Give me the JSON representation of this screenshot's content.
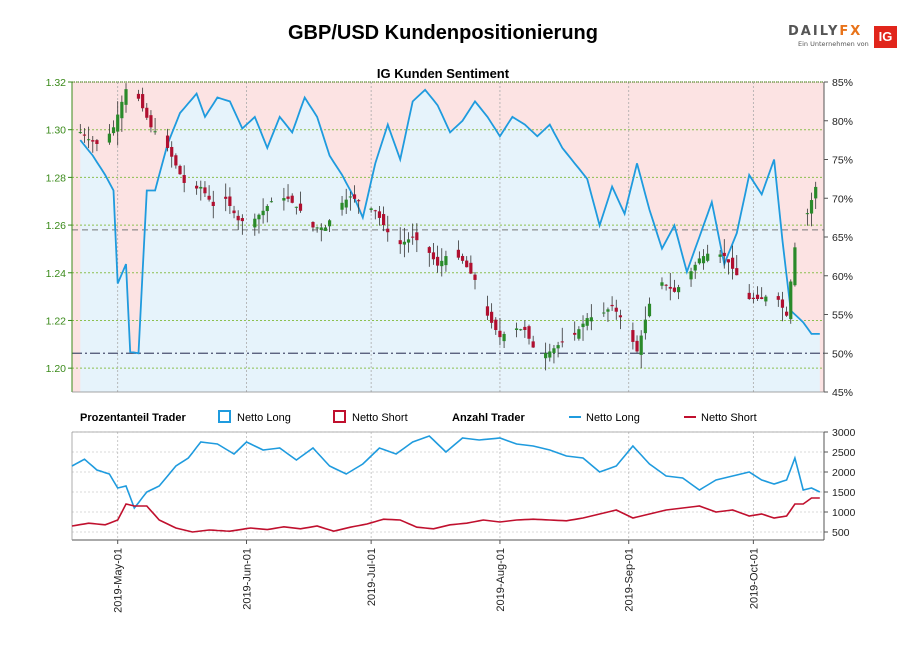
{
  "title": "GBP/USD Kundenpositionierung",
  "logo": {
    "brand_a": "DAILY",
    "brand_b": "FX",
    "tagline": "Ein Unternehmen von",
    "mark": "IG"
  },
  "colors": {
    "long": "#1f9bde",
    "short": "#c0102e",
    "up_candle": "#2a8a2a",
    "down_candle": "#b01030",
    "long_fill": "#e6f3fb",
    "short_fill": "#fce3e3",
    "left_axis": "#3a8a1a"
  },
  "legend": {
    "pct_header": "Prozentanteil Trader",
    "pct_long": "Netto Long",
    "pct_short": "Netto Short",
    "count_header": "Anzahl Trader",
    "count_long": "Netto Long",
    "count_short": "Netto Short"
  },
  "chart_data": [
    {
      "type": "candlestick",
      "title": "IG Kunden Sentiment",
      "ylim_price": [
        1.19,
        1.32
      ],
      "price_ticks": [
        "1.20",
        "1.22",
        "1.24",
        "1.26",
        "1.28",
        "1.30",
        "1.32"
      ],
      "ylim_pct": [
        45,
        85
      ],
      "pct_ticks": [
        "45%",
        "50%",
        "55%",
        "60%",
        "65%",
        "70%",
        "75%",
        "80%",
        "85%"
      ],
      "reference_lines": {
        "price": 1.258,
        "pct": 50
      },
      "close_anchors": [
        [
          "2019-04-22",
          1.299
        ],
        [
          "2019-04-24",
          1.296
        ],
        [
          "2019-04-27",
          1.293
        ],
        [
          "2019-04-30",
          1.301
        ],
        [
          "2019-05-03",
          1.317
        ],
        [
          "2019-05-06",
          1.313
        ],
        [
          "2019-05-09",
          1.301
        ],
        [
          "2019-05-12",
          1.296
        ],
        [
          "2019-05-15",
          1.285
        ],
        [
          "2019-05-18",
          1.274
        ],
        [
          "2019-05-21",
          1.276
        ],
        [
          "2019-05-24",
          1.268
        ],
        [
          "2019-05-27",
          1.271
        ],
        [
          "2019-05-30",
          1.262
        ],
        [
          "2019-06-02",
          1.261
        ],
        [
          "2019-06-05",
          1.266
        ],
        [
          "2019-06-08",
          1.272
        ],
        [
          "2019-06-11",
          1.271
        ],
        [
          "2019-06-14",
          1.266
        ],
        [
          "2019-06-17",
          1.259
        ],
        [
          "2019-06-20",
          1.259
        ],
        [
          "2019-06-23",
          1.268
        ],
        [
          "2019-06-26",
          1.272
        ],
        [
          "2019-06-29",
          1.269
        ],
        [
          "2019-07-02",
          1.266
        ],
        [
          "2019-07-05",
          1.257
        ],
        [
          "2019-07-08",
          1.252
        ],
        [
          "2019-07-11",
          1.255
        ],
        [
          "2019-07-14",
          1.251
        ],
        [
          "2019-07-17",
          1.243
        ],
        [
          "2019-07-20",
          1.249
        ],
        [
          "2019-07-23",
          1.245
        ],
        [
          "2019-07-26",
          1.237
        ],
        [
          "2019-07-29",
          1.222
        ],
        [
          "2019-08-01",
          1.213
        ],
        [
          "2019-08-04",
          1.217
        ],
        [
          "2019-08-07",
          1.216
        ],
        [
          "2019-08-10",
          1.205
        ],
        [
          "2019-08-13",
          1.207
        ],
        [
          "2019-08-16",
          1.211
        ],
        [
          "2019-08-19",
          1.214
        ],
        [
          "2019-08-22",
          1.221
        ],
        [
          "2019-08-25",
          1.222
        ],
        [
          "2019-08-28",
          1.226
        ],
        [
          "2019-08-31",
          1.219
        ],
        [
          "2019-09-03",
          1.207
        ],
        [
          "2019-09-06",
          1.227
        ],
        [
          "2019-09-09",
          1.236
        ],
        [
          "2019-09-12",
          1.232
        ],
        [
          "2019-09-15",
          1.238
        ],
        [
          "2019-09-18",
          1.246
        ],
        [
          "2019-09-21",
          1.249
        ],
        [
          "2019-09-24",
          1.247
        ],
        [
          "2019-09-27",
          1.239
        ],
        [
          "2019-09-30",
          1.229
        ],
        [
          "2019-10-03",
          1.229
        ],
        [
          "2019-10-06",
          1.232
        ],
        [
          "2019-10-09",
          1.222
        ],
        [
          "2019-10-12",
          1.265
        ],
        [
          "2019-10-14",
          1.265
        ],
        [
          "2019-10-16",
          1.276
        ]
      ],
      "net_long_pct_anchors": [
        [
          "2019-04-22",
          77.5
        ],
        [
          "2019-04-25",
          75.5
        ],
        [
          "2019-04-28",
          73.0
        ],
        [
          "2019-04-30",
          71.0
        ],
        [
          "2019-05-01",
          59.0
        ],
        [
          "2019-05-03",
          61.5
        ],
        [
          "2019-05-04",
          50.2
        ],
        [
          "2019-05-06",
          50.0
        ],
        [
          "2019-05-08",
          71.0
        ],
        [
          "2019-05-10",
          71.0
        ],
        [
          "2019-05-13",
          77.0
        ],
        [
          "2019-05-16",
          81.0
        ],
        [
          "2019-05-20",
          83.5
        ],
        [
          "2019-05-22",
          80.5
        ],
        [
          "2019-05-25",
          83.0
        ],
        [
          "2019-05-28",
          82.5
        ],
        [
          "2019-05-31",
          79.0
        ],
        [
          "2019-06-03",
          80.5
        ],
        [
          "2019-06-06",
          76.5
        ],
        [
          "2019-06-09",
          80.5
        ],
        [
          "2019-06-12",
          78.5
        ],
        [
          "2019-06-15",
          83.0
        ],
        [
          "2019-06-18",
          80.5
        ],
        [
          "2019-06-21",
          75.5
        ],
        [
          "2019-06-24",
          73.0
        ],
        [
          "2019-06-27",
          70.0
        ],
        [
          "2019-06-29",
          67.5
        ],
        [
          "2019-07-02",
          74.5
        ],
        [
          "2019-07-05",
          79.5
        ],
        [
          "2019-07-08",
          75.0
        ],
        [
          "2019-07-11",
          82.5
        ],
        [
          "2019-07-14",
          84.0
        ],
        [
          "2019-07-17",
          82.0
        ],
        [
          "2019-07-20",
          78.5
        ],
        [
          "2019-07-23",
          80.0
        ],
        [
          "2019-07-26",
          82.5
        ],
        [
          "2019-07-29",
          80.5
        ],
        [
          "2019-08-01",
          78.0
        ],
        [
          "2019-08-04",
          80.5
        ],
        [
          "2019-08-07",
          79.5
        ],
        [
          "2019-08-10",
          78.0
        ],
        [
          "2019-08-13",
          79.5
        ],
        [
          "2019-08-16",
          76.5
        ],
        [
          "2019-08-19",
          74.5
        ],
        [
          "2019-08-22",
          72.5
        ],
        [
          "2019-08-25",
          66.5
        ],
        [
          "2019-08-28",
          71.5
        ],
        [
          "2019-08-31",
          68.0
        ],
        [
          "2019-09-03",
          74.5
        ],
        [
          "2019-09-06",
          68.5
        ],
        [
          "2019-09-09",
          63.5
        ],
        [
          "2019-09-12",
          66.5
        ],
        [
          "2019-09-15",
          60.5
        ],
        [
          "2019-09-18",
          65.0
        ],
        [
          "2019-09-21",
          69.5
        ],
        [
          "2019-09-24",
          61.5
        ],
        [
          "2019-09-27",
          65.5
        ],
        [
          "2019-09-30",
          73.0
        ],
        [
          "2019-10-03",
          70.5
        ],
        [
          "2019-10-06",
          75.0
        ],
        [
          "2019-10-08",
          64.5
        ],
        [
          "2019-10-10",
          55.5
        ],
        [
          "2019-10-13",
          54.0
        ],
        [
          "2019-10-15",
          52.5
        ],
        [
          "2019-10-17",
          52.5
        ]
      ],
      "intraday_range": 0.012
    },
    {
      "type": "line",
      "ylim": [
        300,
        3000
      ],
      "yticks": [
        "500",
        "1000",
        "1500",
        "2000",
        "2500",
        "3000"
      ],
      "xlim": [
        "2019-04-20",
        "2019-10-18"
      ],
      "x_tick_labels": [
        "2019-May-01",
        "2019-Jun-01",
        "2019-Jul-01",
        "2019-Aug-01",
        "2019-Sep-01",
        "2019-Oct-01"
      ],
      "x_tick_dates": [
        "2019-05-01",
        "2019-06-01",
        "2019-07-01",
        "2019-08-01",
        "2019-09-01",
        "2019-10-01"
      ],
      "series": [
        {
          "name": "Netto Long",
          "values_anchors": [
            [
              "2019-04-20",
              2150
            ],
            [
              "2019-04-23",
              2320
            ],
            [
              "2019-04-26",
              2050
            ],
            [
              "2019-04-29",
              1950
            ],
            [
              "2019-05-01",
              1600
            ],
            [
              "2019-05-03",
              1650
            ],
            [
              "2019-05-05",
              1100
            ],
            [
              "2019-05-08",
              1500
            ],
            [
              "2019-05-11",
              1650
            ],
            [
              "2019-05-15",
              2150
            ],
            [
              "2019-05-18",
              2350
            ],
            [
              "2019-05-21",
              2750
            ],
            [
              "2019-05-25",
              2700
            ],
            [
              "2019-05-29",
              2450
            ],
            [
              "2019-06-01",
              2750
            ],
            [
              "2019-06-05",
              2550
            ],
            [
              "2019-06-09",
              2600
            ],
            [
              "2019-06-13",
              2300
            ],
            [
              "2019-06-17",
              2600
            ],
            [
              "2019-06-21",
              2150
            ],
            [
              "2019-06-25",
              1950
            ],
            [
              "2019-06-29",
              2200
            ],
            [
              "2019-07-03",
              2600
            ],
            [
              "2019-07-07",
              2450
            ],
            [
              "2019-07-11",
              2750
            ],
            [
              "2019-07-15",
              2900
            ],
            [
              "2019-07-19",
              2500
            ],
            [
              "2019-07-23",
              2850
            ],
            [
              "2019-07-27",
              2800
            ],
            [
              "2019-08-01",
              2850
            ],
            [
              "2019-08-05",
              2700
            ],
            [
              "2019-08-09",
              2650
            ],
            [
              "2019-08-13",
              2550
            ],
            [
              "2019-08-17",
              2400
            ],
            [
              "2019-08-21",
              2350
            ],
            [
              "2019-08-25",
              2000
            ],
            [
              "2019-08-29",
              2150
            ],
            [
              "2019-09-02",
              2650
            ],
            [
              "2019-09-06",
              2200
            ],
            [
              "2019-09-10",
              1900
            ],
            [
              "2019-09-14",
              1850
            ],
            [
              "2019-09-18",
              1550
            ],
            [
              "2019-09-22",
              1800
            ],
            [
              "2019-09-26",
              1900
            ],
            [
              "2019-09-30",
              2000
            ],
            [
              "2019-10-03",
              1800
            ],
            [
              "2019-10-06",
              1700
            ],
            [
              "2019-10-09",
              1800
            ],
            [
              "2019-10-11",
              2350
            ],
            [
              "2019-10-13",
              1550
            ],
            [
              "2019-10-15",
              1600
            ],
            [
              "2019-10-17",
              1500
            ]
          ]
        },
        {
          "name": "Netto Short",
          "values_anchors": [
            [
              "2019-04-20",
              650
            ],
            [
              "2019-04-24",
              720
            ],
            [
              "2019-04-28",
              680
            ],
            [
              "2019-05-01",
              800
            ],
            [
              "2019-05-03",
              1200
            ],
            [
              "2019-05-05",
              1150
            ],
            [
              "2019-05-08",
              1150
            ],
            [
              "2019-05-11",
              800
            ],
            [
              "2019-05-15",
              600
            ],
            [
              "2019-05-19",
              500
            ],
            [
              "2019-05-23",
              550
            ],
            [
              "2019-05-28",
              520
            ],
            [
              "2019-06-02",
              600
            ],
            [
              "2019-06-06",
              560
            ],
            [
              "2019-06-10",
              630
            ],
            [
              "2019-06-14",
              580
            ],
            [
              "2019-06-18",
              650
            ],
            [
              "2019-06-22",
              520
            ],
            [
              "2019-06-26",
              620
            ],
            [
              "2019-06-30",
              700
            ],
            [
              "2019-07-04",
              820
            ],
            [
              "2019-07-08",
              800
            ],
            [
              "2019-07-12",
              620
            ],
            [
              "2019-07-16",
              580
            ],
            [
              "2019-07-20",
              680
            ],
            [
              "2019-07-24",
              720
            ],
            [
              "2019-07-28",
              800
            ],
            [
              "2019-08-01",
              750
            ],
            [
              "2019-08-05",
              800
            ],
            [
              "2019-08-09",
              820
            ],
            [
              "2019-08-13",
              800
            ],
            [
              "2019-08-17",
              780
            ],
            [
              "2019-08-21",
              850
            ],
            [
              "2019-08-25",
              950
            ],
            [
              "2019-08-29",
              1050
            ],
            [
              "2019-09-02",
              850
            ],
            [
              "2019-09-06",
              950
            ],
            [
              "2019-09-10",
              1050
            ],
            [
              "2019-09-14",
              1100
            ],
            [
              "2019-09-18",
              1150
            ],
            [
              "2019-09-22",
              1000
            ],
            [
              "2019-09-26",
              1050
            ],
            [
              "2019-09-30",
              900
            ],
            [
              "2019-10-03",
              950
            ],
            [
              "2019-10-06",
              850
            ],
            [
              "2019-10-09",
              900
            ],
            [
              "2019-10-11",
              1200
            ],
            [
              "2019-10-13",
              1200
            ],
            [
              "2019-10-15",
              1350
            ],
            [
              "2019-10-17",
              1350
            ]
          ]
        }
      ]
    }
  ]
}
